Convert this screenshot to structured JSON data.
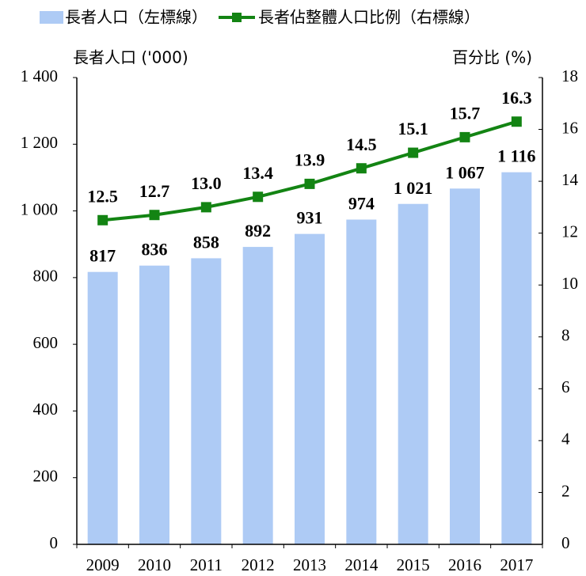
{
  "chart_data": {
    "type": "bar",
    "categories": [
      "2009",
      "2010",
      "2011",
      "2012",
      "2013",
      "2014",
      "2015",
      "2016",
      "2017"
    ],
    "ylabel": "長者人口 ('000)",
    "y2label": "百分比 (%)",
    "ylim": [
      0,
      1400
    ],
    "yticks": [
      0,
      200,
      400,
      600,
      800,
      {
        "value": 1000,
        "label": "1 000"
      },
      {
        "value": 1200,
        "label": "1 200"
      },
      {
        "value": 1400,
        "label": "1 400"
      }
    ],
    "y2lim": [
      0,
      18
    ],
    "y2ticks": [
      0,
      2,
      4,
      6,
      8,
      10,
      12,
      14,
      16,
      18
    ],
    "legend": "top",
    "series": [
      {
        "name": "長者人口（左標線）",
        "type": "bar",
        "color": "#aecbf5",
        "label_color": "#1a1adc",
        "values": [
          817,
          836,
          858,
          892,
          931,
          974,
          1021,
          1067,
          1116
        ],
        "value_labels": [
          "817",
          "836",
          "858",
          "892",
          "931",
          "974",
          "1 021",
          "1 067",
          "1 116"
        ]
      },
      {
        "name": "長者佔整體人口比例（右標線）",
        "type": "line",
        "axis": "y2",
        "color": "#138413",
        "label_color": "#1f8a1f",
        "values": [
          12.5,
          12.7,
          13.0,
          13.4,
          13.9,
          14.5,
          15.1,
          15.7,
          16.3
        ],
        "value_labels": [
          "12.5",
          "12.7",
          "13.0",
          "13.4",
          "13.9",
          "14.5",
          "15.1",
          "15.7",
          "16.3"
        ]
      }
    ]
  }
}
